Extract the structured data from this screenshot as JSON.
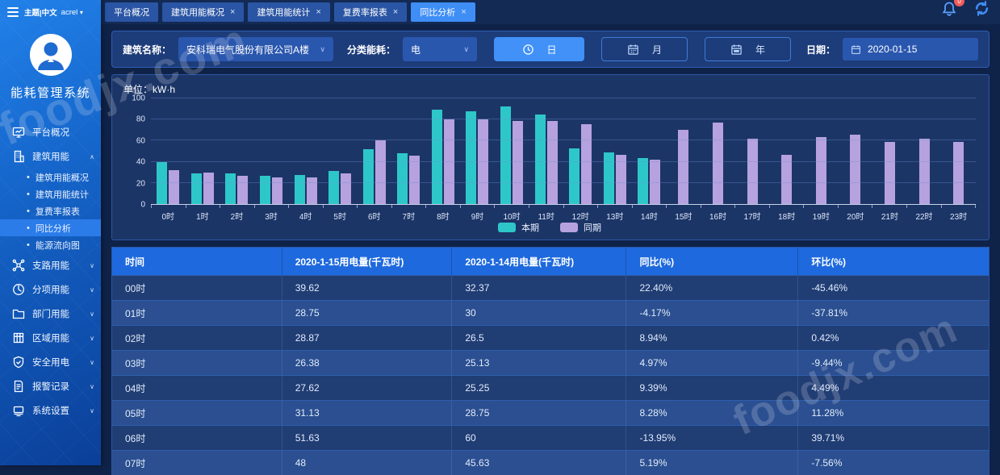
{
  "app_title": "能耗管理系统",
  "topbar": {
    "theme_label": "主题|中文",
    "user": "acrel",
    "user_caret": "▾",
    "bell_badge": "0"
  },
  "tabs": [
    {
      "label": "平台概况",
      "closable": false,
      "active": false
    },
    {
      "label": "建筑用能概况",
      "closable": true,
      "active": false
    },
    {
      "label": "建筑用能统计",
      "closable": true,
      "active": false
    },
    {
      "label": "复费率报表",
      "closable": true,
      "active": false
    },
    {
      "label": "同比分析",
      "closable": true,
      "active": true
    }
  ],
  "sidebar": {
    "items": [
      {
        "label": "平台概况",
        "icon": "dashboard-icon",
        "expandable": false
      },
      {
        "label": "建筑用能",
        "icon": "building-icon",
        "expandable": true,
        "expanded": true,
        "children": [
          {
            "label": "建筑用能概况",
            "active": false
          },
          {
            "label": "建筑用能统计",
            "active": false
          },
          {
            "label": "复费率报表",
            "active": false
          },
          {
            "label": "同比分析",
            "active": true
          },
          {
            "label": "能源流向图",
            "active": false
          }
        ]
      },
      {
        "label": "支路用能",
        "icon": "branch-icon",
        "expandable": true,
        "expanded": false
      },
      {
        "label": "分项用能",
        "icon": "pie-icon",
        "expandable": true,
        "expanded": false
      },
      {
        "label": "部门用能",
        "icon": "folder-icon",
        "expandable": true,
        "expanded": false
      },
      {
        "label": "区域用能",
        "icon": "region-icon",
        "expandable": true,
        "expanded": false
      },
      {
        "label": "安全用电",
        "icon": "shield-icon",
        "expandable": true,
        "expanded": false
      },
      {
        "label": "报警记录",
        "icon": "file-icon",
        "expandable": true,
        "expanded": false
      },
      {
        "label": "系统设置",
        "icon": "computer-icon",
        "expandable": true,
        "expanded": false
      }
    ]
  },
  "filters": {
    "building_label": "建筑名称：",
    "building_value": "安科瑞电气股份有限公司A楼",
    "category_label": "分类能耗：",
    "category_value": "电",
    "period_buttons": [
      {
        "label": "日",
        "icon": "clock-icon",
        "active": true
      },
      {
        "label": "月",
        "icon": "calendar-icon",
        "active": false
      },
      {
        "label": "年",
        "icon": "calendar-year-icon",
        "active": false
      }
    ],
    "date_label": "日期：",
    "date_value": "2020-01-15"
  },
  "chart": {
    "unit_label": "单位：kW·h"
  },
  "chart_data": {
    "type": "bar",
    "title": "",
    "xlabel": "",
    "ylabel": "kW·h",
    "ylim": [
      0,
      100
    ],
    "yticks": [
      0,
      20,
      40,
      60,
      80,
      100
    ],
    "grid": true,
    "legend_position": "bottom",
    "categories": [
      "0时",
      "1时",
      "2时",
      "3时",
      "4时",
      "5时",
      "6时",
      "7时",
      "8时",
      "9时",
      "10时",
      "11时",
      "12时",
      "13时",
      "14时",
      "15时",
      "16时",
      "17时",
      "18时",
      "19时",
      "20时",
      "21时",
      "22时",
      "23时"
    ],
    "series": [
      {
        "name": "本期",
        "color": "#2ec7c9",
        "values": [
          39.62,
          28.75,
          28.87,
          26.38,
          27.62,
          31.13,
          51.63,
          48,
          89.5,
          87.5,
          92.5,
          85,
          52.5,
          49,
          43.5,
          null,
          null,
          null,
          null,
          null,
          null,
          null,
          null,
          null
        ]
      },
      {
        "name": "同期",
        "color": "#b6a2de",
        "values": [
          32.37,
          30,
          26.5,
          25.13,
          25.25,
          28.75,
          60,
          45.63,
          80,
          80,
          78.5,
          79,
          75.5,
          46.5,
          42,
          70,
          77,
          61.5,
          46.5,
          63,
          66,
          59,
          61.5,
          58.5
        ]
      }
    ]
  },
  "table": {
    "headers": [
      "时间",
      "2020-1-15用电量(千瓦时)",
      "2020-1-14用电量(千瓦时)",
      "同比(%)",
      "环比(%)"
    ],
    "rows": [
      [
        "00时",
        "39.62",
        "32.37",
        "22.40%",
        "-45.46%"
      ],
      [
        "01时",
        "28.75",
        "30",
        "-4.17%",
        "-37.81%"
      ],
      [
        "02时",
        "28.87",
        "26.5",
        "8.94%",
        "0.42%"
      ],
      [
        "03时",
        "26.38",
        "25.13",
        "4.97%",
        "-9.44%"
      ],
      [
        "04时",
        "27.62",
        "25.25",
        "9.39%",
        "4.49%"
      ],
      [
        "05时",
        "31.13",
        "28.75",
        "8.28%",
        "11.28%"
      ],
      [
        "06时",
        "51.63",
        "60",
        "-13.95%",
        "39.71%"
      ],
      [
        "07时",
        "48",
        "45.63",
        "5.19%",
        "-7.56%"
      ]
    ]
  },
  "watermarks": [
    "foodjx.com",
    "foodjx.com"
  ],
  "colors": {
    "accent": "#3f8ef6",
    "series_current": "#2ec7c9",
    "series_previous": "#b6a2de",
    "table_header": "#1e69dd",
    "badge_red": "#f05b5b"
  }
}
